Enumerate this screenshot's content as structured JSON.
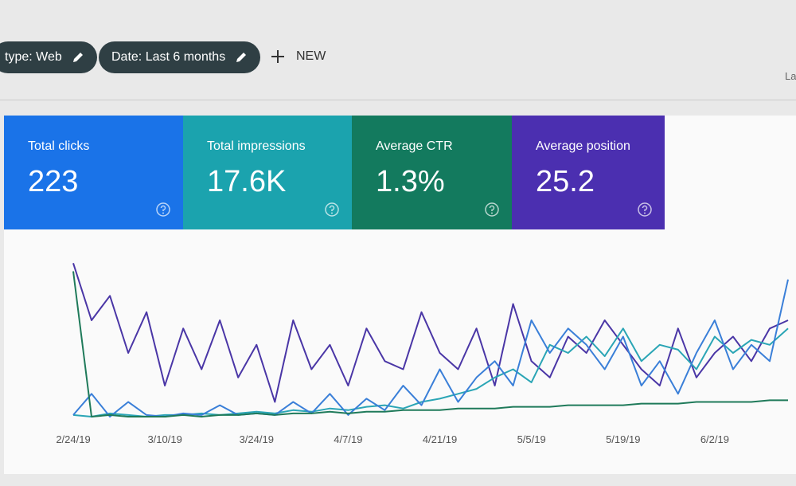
{
  "filters": [
    {
      "label": "type: Web"
    },
    {
      "label": "Date: Last 6 months"
    }
  ],
  "new_button": "NEW",
  "corner_text": "La",
  "cards": [
    {
      "title": "Total clicks",
      "value": "223",
      "color": "#1a73e8"
    },
    {
      "title": "Total impressions",
      "value": "17.6K",
      "color": "#1ba3ae"
    },
    {
      "title": "Average CTR",
      "value": "1.3%",
      "color": "#137a5e"
    },
    {
      "title": "Average position",
      "value": "25.2",
      "color": "#4b2fb0"
    }
  ],
  "chart_data": {
    "type": "line",
    "categories": [
      "2/24/19",
      null,
      null,
      null,
      null,
      "3/10/19",
      null,
      null,
      null,
      null,
      "3/24/19",
      null,
      null,
      null,
      null,
      "4/7/19",
      null,
      null,
      null,
      null,
      "4/21/19",
      null,
      null,
      null,
      null,
      "5/5/19",
      null,
      null,
      null,
      null,
      "5/19/19",
      null,
      null,
      null,
      null,
      "6/2/19",
      null,
      null,
      null,
      null
    ],
    "ylim": [
      0,
      100
    ],
    "series": [
      {
        "color": "#4a36a6",
        "values": [
          95,
          60,
          75,
          40,
          65,
          20,
          55,
          30,
          60,
          25,
          45,
          10,
          60,
          30,
          45,
          20,
          55,
          35,
          30,
          65,
          40,
          30,
          55,
          20,
          70,
          35,
          25,
          50,
          40,
          60,
          45,
          30,
          20,
          55,
          25,
          40,
          50,
          35,
          55,
          60
        ]
      },
      {
        "color": "#2aa5b5",
        "values": [
          2,
          1,
          3,
          2,
          1,
          2,
          2,
          3,
          2,
          3,
          4,
          3,
          5,
          4,
          6,
          5,
          7,
          8,
          6,
          10,
          12,
          15,
          18,
          25,
          30,
          22,
          45,
          40,
          50,
          38,
          55,
          35,
          45,
          42,
          30,
          50,
          40,
          48,
          45,
          55
        ]
      },
      {
        "color": "#3a7fd8",
        "values": [
          2,
          15,
          1,
          10,
          2,
          1,
          3,
          2,
          8,
          2,
          3,
          2,
          10,
          3,
          15,
          2,
          12,
          5,
          20,
          8,
          30,
          10,
          25,
          35,
          20,
          60,
          40,
          55,
          45,
          30,
          50,
          20,
          35,
          15,
          40,
          60,
          30,
          45,
          35,
          85
        ]
      },
      {
        "color": "#1f7a5a",
        "values": [
          90,
          1,
          2,
          1,
          1,
          1,
          2,
          1,
          2,
          2,
          3,
          2,
          3,
          3,
          4,
          3,
          4,
          4,
          5,
          5,
          5,
          6,
          6,
          6,
          7,
          7,
          7,
          8,
          8,
          8,
          8,
          9,
          9,
          9,
          10,
          10,
          10,
          10,
          11,
          11
        ]
      }
    ]
  }
}
